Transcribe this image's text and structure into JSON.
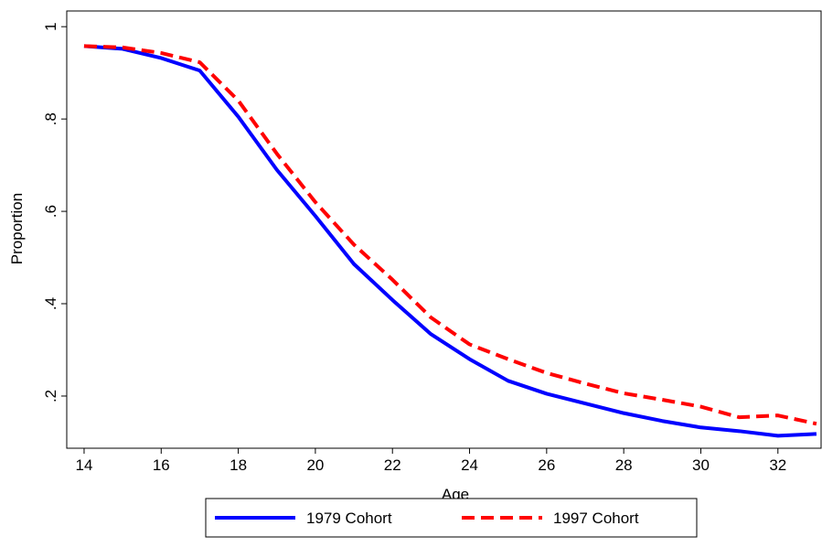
{
  "chart_data": {
    "type": "line",
    "x_label": "Age",
    "y_label": "Proportion",
    "x": [
      14,
      15,
      16,
      17,
      18,
      19,
      20,
      21,
      22,
      23,
      24,
      25,
      26,
      27,
      28,
      29,
      30,
      31,
      32,
      33
    ],
    "series": [
      {
        "name": "1979 Cohort",
        "color": "#0000ff",
        "dash": false,
        "values": [
          0.958,
          0.952,
          0.932,
          0.905,
          0.805,
          0.69,
          0.59,
          0.486,
          0.408,
          0.334,
          0.28,
          0.233,
          0.205,
          0.184,
          0.163,
          0.146,
          0.132,
          0.124,
          0.114,
          0.118
        ]
      },
      {
        "name": "1997 Cohort",
        "color": "#ff0000",
        "dash": true,
        "values": [
          0.958,
          0.955,
          0.943,
          0.923,
          0.84,
          0.725,
          0.62,
          0.528,
          0.452,
          0.37,
          0.312,
          0.28,
          0.25,
          0.227,
          0.206,
          0.192,
          0.177,
          0.154,
          0.158,
          0.14
        ]
      }
    ],
    "xlim": [
      13.55,
      33.12
    ],
    "ylim": [
      0.087,
      1.034
    ],
    "xticks": [
      14,
      16,
      18,
      20,
      22,
      24,
      26,
      28,
      30,
      32
    ],
    "yticks": [
      {
        "value": 0.2,
        "label": ".2"
      },
      {
        "value": 0.4,
        "label": ".4"
      },
      {
        "value": 0.6,
        "label": ".6"
      },
      {
        "value": 0.8,
        "label": ".8"
      },
      1
    ],
    "legend": "bottom"
  }
}
